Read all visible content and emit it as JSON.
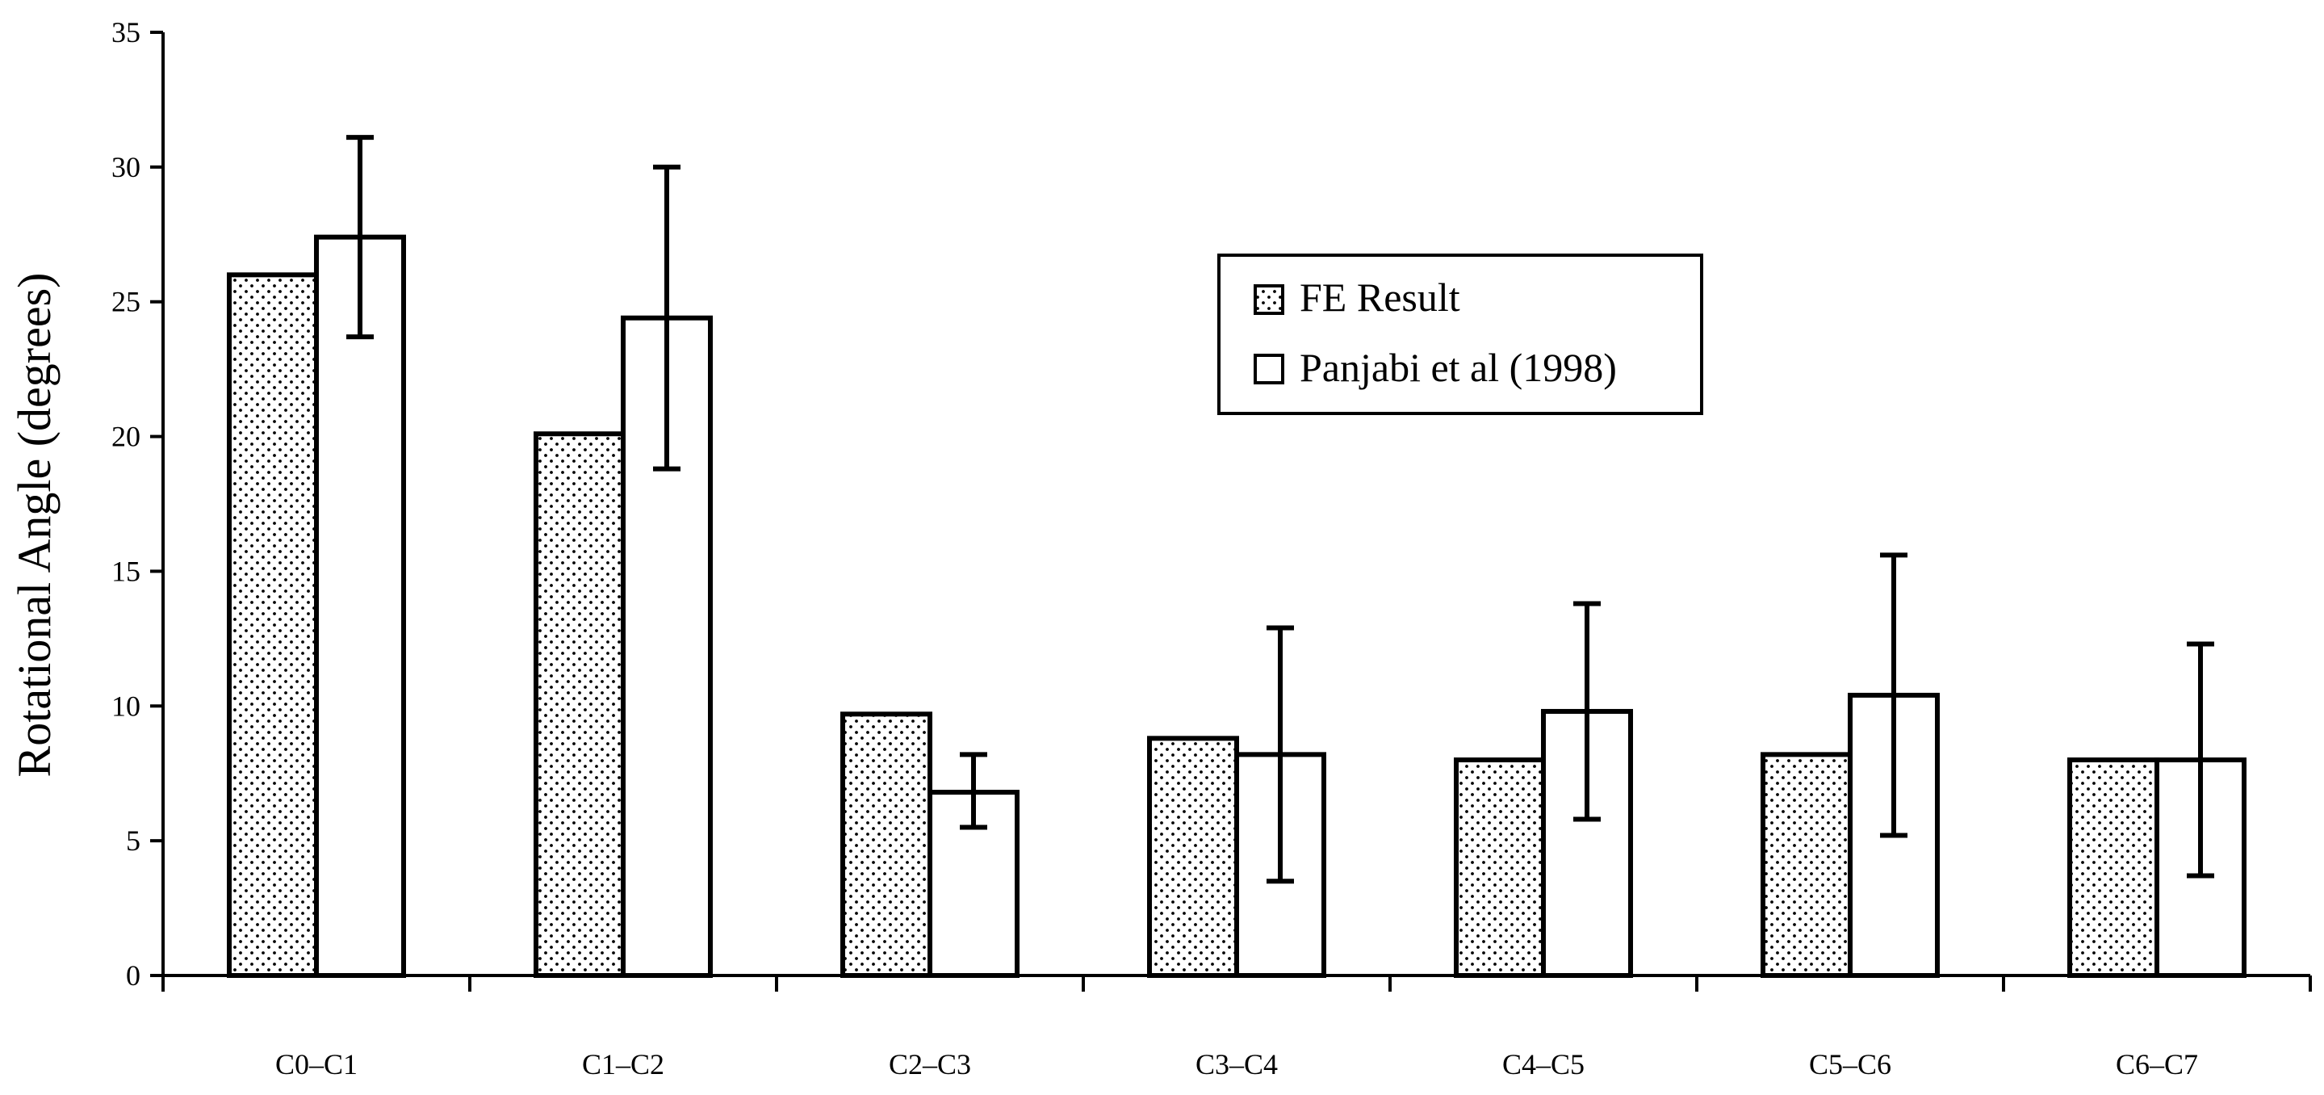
{
  "chart_data": {
    "type": "bar",
    "title": "",
    "xlabel": "",
    "ylabel": "Rotational Angle (degrees)",
    "ylim": [
      0,
      35
    ],
    "yticks": [
      0,
      5,
      10,
      15,
      20,
      25,
      30,
      35
    ],
    "categories": [
      "C0–C1",
      "C1–C2",
      "C2–C3",
      "C3–C4",
      "C4–C5",
      "C5–C6",
      "C6–C7"
    ],
    "series": [
      {
        "name": "FE Result",
        "pattern": "dotted",
        "values": [
          26.0,
          20.1,
          9.7,
          8.8,
          8.0,
          8.2,
          8.0
        ]
      },
      {
        "name": "Panjabi et al (1998)",
        "pattern": "blank",
        "values": [
          27.4,
          24.4,
          6.8,
          8.2,
          9.8,
          10.4,
          8.0
        ],
        "error_low": [
          23.7,
          18.8,
          5.5,
          3.5,
          5.8,
          5.2,
          3.7
        ],
        "error_high": [
          31.1,
          30.0,
          8.2,
          12.9,
          13.8,
          15.6,
          12.3
        ]
      }
    ],
    "legend_position": "upper-center-right",
    "grid": false
  }
}
